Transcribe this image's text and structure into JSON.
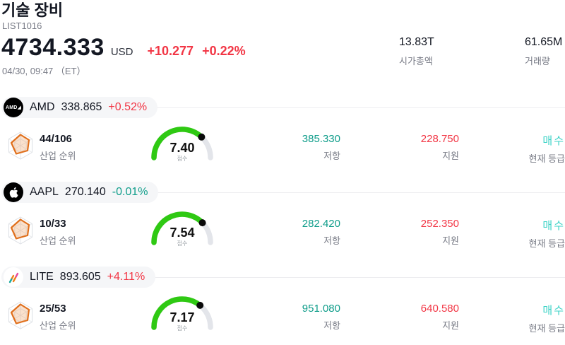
{
  "header": {
    "title": "기술 장비",
    "list_id": "LIST1016",
    "price": "4734.333",
    "currency": "USD",
    "change_abs": "+10.277",
    "change_pct": "+0.22%",
    "datetime": "04/30, 09:47 （ET）",
    "stats": [
      {
        "value": "13.83T",
        "label": "시가총액"
      },
      {
        "value": "61.65M",
        "label": "거래량"
      }
    ]
  },
  "labels": {
    "rank": "산업 순위",
    "score": "점수",
    "resistance": "저항",
    "support": "지원",
    "rating": "현재 등급"
  },
  "colors": {
    "up": "#f23645",
    "down": "#0f9d8a",
    "rating": "#3bd2c6",
    "gauge": "#2fc913",
    "muted": "#787b86"
  },
  "stocks": [
    {
      "ticker": "AMD",
      "price": "338.865",
      "change": "+0.52%",
      "change_dir": "up",
      "logo": "amd",
      "logo_text": "AMD◢",
      "rank": "44/106",
      "score": "7.40",
      "score_value": 7.4,
      "resistance": "385.330",
      "support": "228.750",
      "rating": "매수"
    },
    {
      "ticker": "AAPL",
      "price": "270.140",
      "change": "-0.01%",
      "change_dir": "down",
      "logo": "aapl",
      "rank": "10/33",
      "score": "7.54",
      "score_value": 7.54,
      "resistance": "282.420",
      "support": "252.350",
      "rating": "매수"
    },
    {
      "ticker": "LITE",
      "price": "893.605",
      "change": "+4.11%",
      "change_dir": "up",
      "logo": "lite",
      "rank": "25/53",
      "score": "7.17",
      "score_value": 7.17,
      "resistance": "951.080",
      "support": "640.580",
      "rating": "매수"
    }
  ]
}
